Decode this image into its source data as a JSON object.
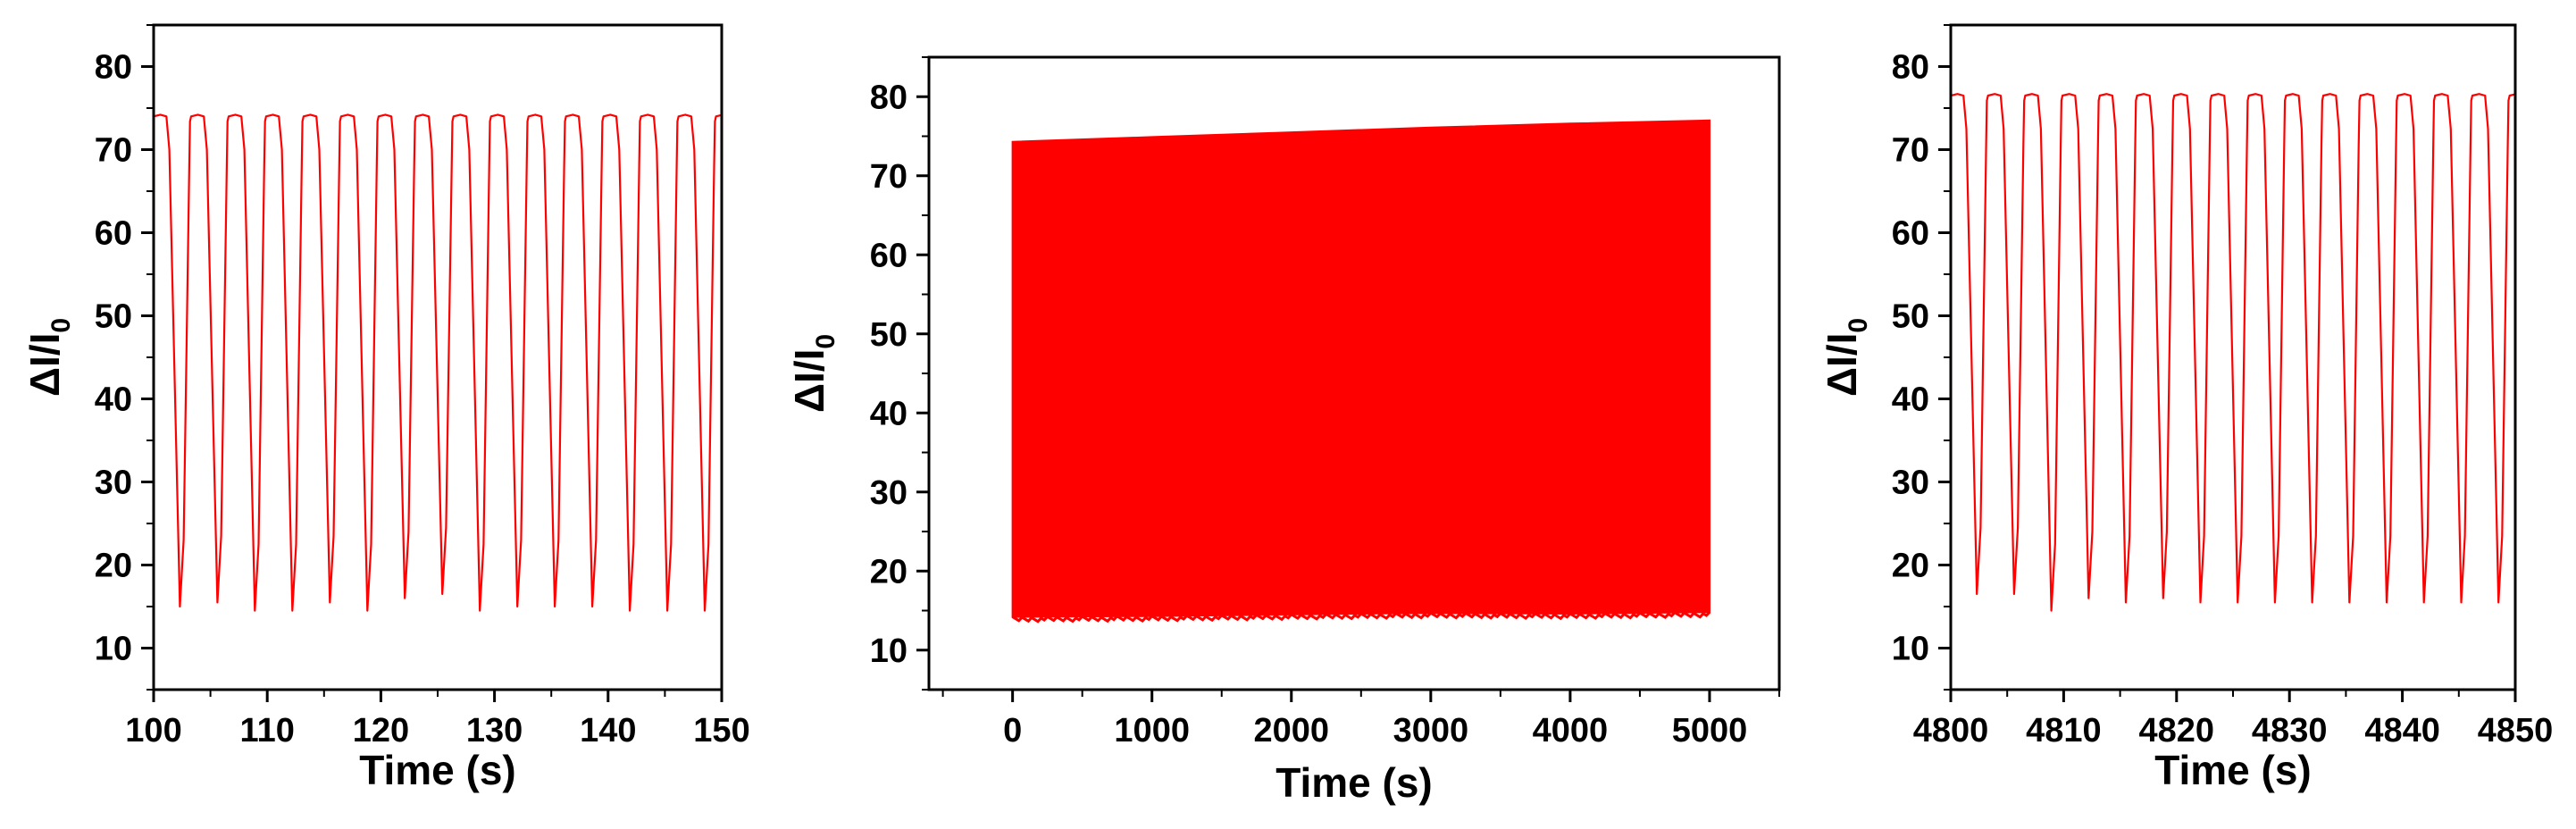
{
  "colors": {
    "series": "#ff0000",
    "axes": "#000000",
    "background": "#ffffff"
  },
  "chart_data": [
    {
      "type": "line",
      "xlabel": "Time (s)",
      "ylabel": "ΔI/I",
      "ylabel_subscript": "0",
      "xlim": [
        100,
        150
      ],
      "ylim": [
        5,
        85
      ],
      "xticks": [
        "100",
        "110",
        "120",
        "130",
        "140",
        "150"
      ],
      "yticks": [
        "10",
        "20",
        "30",
        "40",
        "50",
        "60",
        "70",
        "80"
      ],
      "grid": false,
      "cycle": {
        "first_peak_time": 100.0,
        "period_s": 3.3,
        "count": 16,
        "plateau_values": [
          74,
          74,
          74,
          74,
          74,
          74,
          74,
          74,
          74,
          74,
          74,
          74,
          74,
          74,
          74,
          74
        ],
        "min_values": [
          15,
          15.5,
          14.5,
          14.5,
          15.5,
          14.5,
          16,
          16.5,
          14.5,
          15,
          15,
          15,
          14.5,
          14.5,
          14.5,
          15
        ]
      }
    },
    {
      "type": "area",
      "xlabel": "Time (s)",
      "ylabel": "ΔI/I",
      "ylabel_subscript": "0",
      "xlim": [
        -600,
        5500
      ],
      "ylim": [
        5,
        85
      ],
      "xticks": [
        "0",
        "1000",
        "2000",
        "3000",
        "4000",
        "5000"
      ],
      "yticks": [
        "10",
        "20",
        "30",
        "40",
        "50",
        "60",
        "70",
        "80"
      ],
      "grid": false,
      "envelope": {
        "x": [
          0,
          1000,
          2000,
          3000,
          4000,
          5000
        ],
        "upper": [
          74.3,
          74.9,
          75.5,
          76.1,
          76.6,
          77.0
        ],
        "lower": [
          14.2,
          14.3,
          14.5,
          14.7,
          14.6,
          14.8
        ]
      }
    },
    {
      "type": "line",
      "xlabel": "Time (s)",
      "ylabel": "ΔI/I",
      "ylabel_subscript": "0",
      "xlim": [
        4800,
        4850
      ],
      "ylim": [
        5,
        85
      ],
      "xticks": [
        "4800",
        "4810",
        "4820",
        "4830",
        "4840",
        "4850"
      ],
      "yticks": [
        "10",
        "20",
        "30",
        "40",
        "50",
        "60",
        "70",
        "80"
      ],
      "grid": false,
      "cycle": {
        "first_peak_time": 4800.0,
        "period_s": 3.3,
        "count": 16,
        "plateau_values": [
          76.5,
          76.5,
          76.5,
          76.5,
          76.5,
          76.5,
          76.5,
          76.5,
          76.5,
          76.5,
          76.5,
          76.5,
          76.5,
          76.5,
          76.5,
          76.5
        ],
        "min_values": [
          16.5,
          16.5,
          14.5,
          16,
          15.5,
          16,
          15.5,
          15.5,
          15.5,
          15.5,
          15.5,
          15.5,
          15.5,
          15.5,
          15.5,
          15
        ]
      }
    }
  ]
}
